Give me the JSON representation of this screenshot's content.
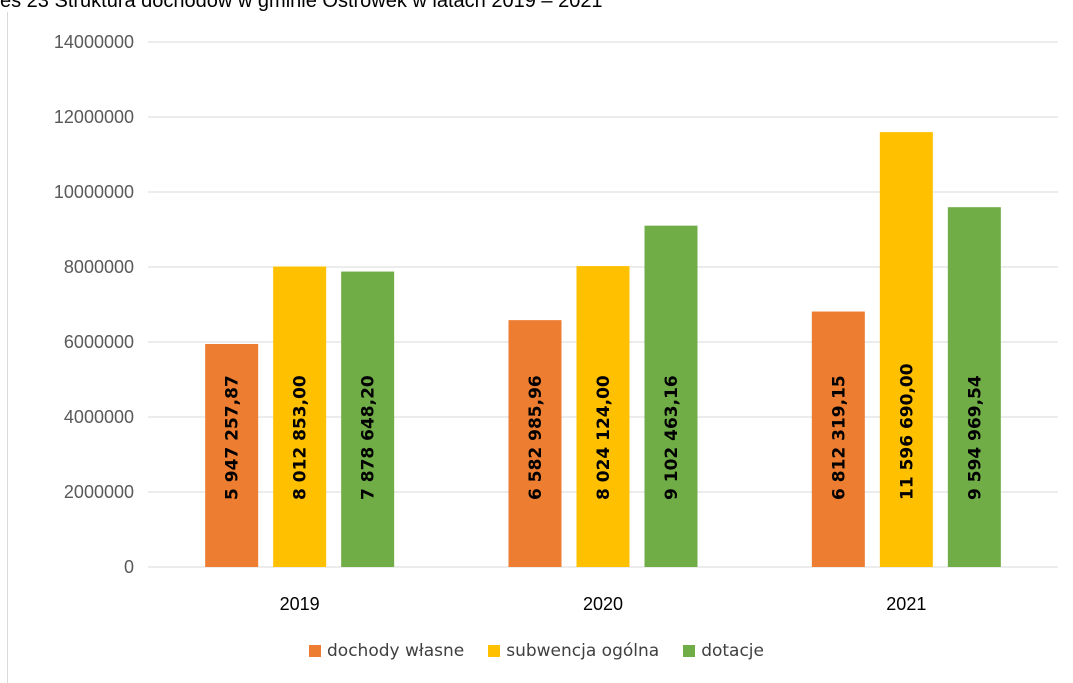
{
  "chart_data": {
    "type": "bar",
    "title": "es 23 Struktura dochodów w gminie Ostrówek w latach 2019 – 2021",
    "categories": [
      "2019",
      "2020",
      "2021"
    ],
    "series": [
      {
        "name": "dochody własne",
        "color": "#ED7D31",
        "values": [
          5947257.87,
          6582985.96,
          6812319.15
        ],
        "labels": [
          "5 947 257,87",
          "6 582 985,96",
          "6 812 319,15"
        ]
      },
      {
        "name": "subwencja ogólna",
        "color": "#FFC000",
        "values": [
          8012853.0,
          8024124.0,
          11596690.0
        ],
        "labels": [
          "8 012 853,00",
          "8 024 124,00",
          "11 596 690,00"
        ]
      },
      {
        "name": "dotacje",
        "color": "#70AD47",
        "values": [
          7878648.2,
          9102463.16,
          9594969.54
        ],
        "labels": [
          "7 878 648,20",
          "9 102 463,16",
          "9 594 969,54"
        ]
      }
    ],
    "yticks": [
      "0",
      "2000000",
      "4000000",
      "6000000",
      "8000000",
      "10000000",
      "12000000",
      "14000000"
    ],
    "ylim": [
      0,
      14000000
    ],
    "grid": true,
    "legend_position": "bottom"
  }
}
